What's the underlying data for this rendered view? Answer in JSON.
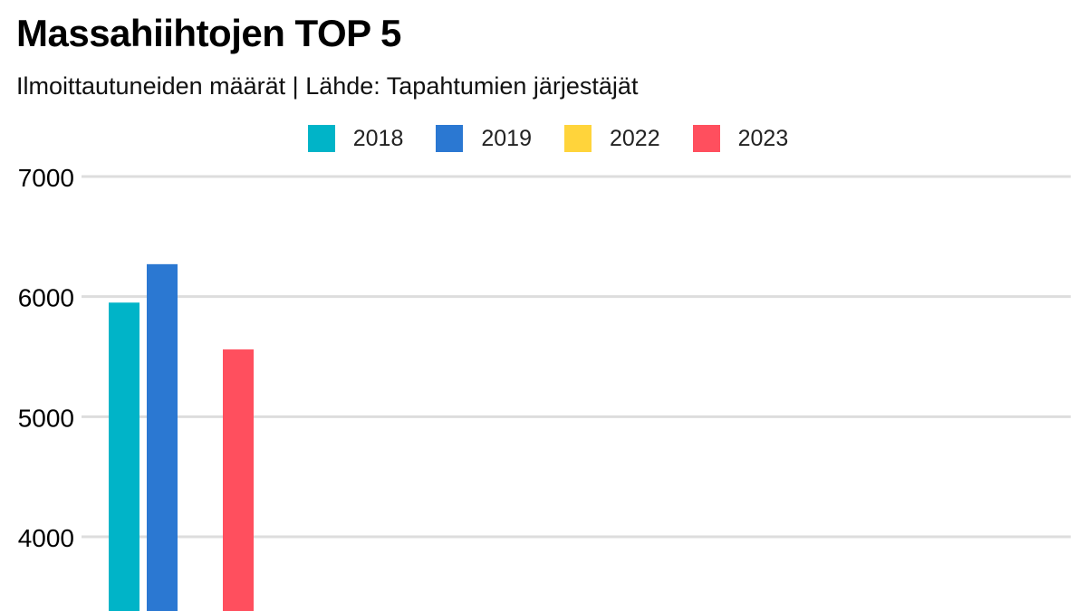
{
  "header": {
    "title": "Massahiihtojen TOP 5",
    "subtitle": "Ilmoittautuneiden määrät | Lähde: Tapahtumien järjestäjät"
  },
  "chart_data": {
    "type": "bar",
    "title": "Massahiihtojen TOP 5",
    "subtitle": "Ilmoittautuneiden määrät | Lähde: Tapahtumien järjestäjät",
    "xlabel": "",
    "ylabel": "",
    "categories": [
      ""
    ],
    "series": [
      {
        "name": "2018",
        "color": "#00b4c8",
        "values": [
          5950
        ]
      },
      {
        "name": "2019",
        "color": "#2b78d2",
        "values": [
          6270
        ]
      },
      {
        "name": "2022",
        "color": "#ffd43b",
        "values": [
          null
        ]
      },
      {
        "name": "2023",
        "color": "#ff4f5e",
        "values": [
          5560
        ]
      }
    ],
    "yticks": [
      "4000",
      "5000",
      "6000",
      "7000"
    ],
    "ylim": [
      3400,
      7000
    ],
    "grid": true,
    "legend_position": "top-center"
  }
}
